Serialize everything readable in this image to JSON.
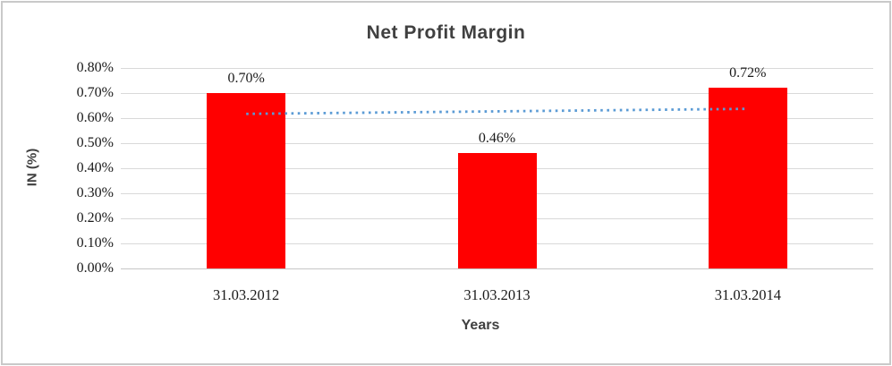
{
  "chart_data": {
    "type": "bar",
    "title": "Net Profit Margin",
    "xlabel": "Years",
    "ylabel": "IN (%)",
    "categories": [
      "31.03.2012",
      "31.03.2013",
      "31.03.2014"
    ],
    "values": [
      0.7,
      0.46,
      0.72
    ],
    "data_labels": [
      "0.70%",
      "0.46%",
      "0.72%"
    ],
    "y_ticks": [
      "0.00%",
      "0.10%",
      "0.20%",
      "0.30%",
      "0.40%",
      "0.50%",
      "0.60%",
      "0.70%",
      "0.80%"
    ],
    "ylim": [
      0,
      0.8
    ],
    "grid": true,
    "legend": "none",
    "colors": {
      "bar": "#ff0000",
      "gridline": "#d9d9d9",
      "axis_line": "#c6c6c6",
      "trendline": "#5b9bd5",
      "title_text": "#404040",
      "label_text": "#1a1a1a",
      "frame_border": "#c9c9c9"
    },
    "trendline": {
      "type": "linear",
      "style": "dotted",
      "start_value": 0.617,
      "end_value": 0.637
    }
  }
}
